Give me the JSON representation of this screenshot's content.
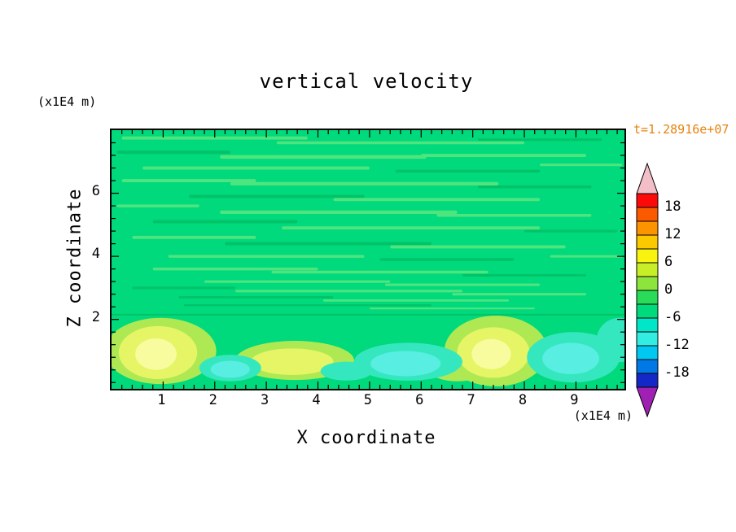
{
  "title": "vertical velocity",
  "timestamp": "t=1.28916e+07",
  "timestamp_color": "#E8820F",
  "axes": {
    "x": {
      "label": "X coordinate",
      "unit": "(x1E4 m)",
      "ticks": [
        1,
        2,
        3,
        4,
        5,
        6,
        7,
        8,
        9
      ],
      "min": 0,
      "max": 9.94
    },
    "y": {
      "label": "Z coordinate",
      "unit": "(x1E4 m)",
      "ticks": [
        2,
        4,
        6
      ],
      "min": -0.2,
      "max": 8.0
    }
  },
  "colorbar": {
    "labels": [
      "18",
      "12",
      "6",
      "0",
      "-6",
      "-12",
      "-18"
    ],
    "segment_colors": [
      "#FC0A0A",
      "#FC5A00",
      "#FC9400",
      "#FCC800",
      "#F8F410",
      "#C8EE28",
      "#8CE43C",
      "#28DC5A",
      "#00D97C",
      "#00E6C8",
      "#32EEE2",
      "#00C8F0",
      "#0078E6",
      "#1428C8"
    ],
    "arrow_top_color": "#F2BFC8",
    "arrow_bottom_color": "#A020B4",
    "border_color": "#000000"
  },
  "field": {
    "base_color": "#00D97C",
    "streak_light": "#4EE57F",
    "streak_dark": "#00C368",
    "value_fill": {
      "3": "#AEE954",
      "6": "#E6F566",
      "9": "#F8FC9E",
      "-3": "#35E7BE",
      "-6": "#58EEE2"
    }
  },
  "chart_data": {
    "type": "heatmap",
    "title": "vertical velocity",
    "xlabel": "X coordinate (x1E4 m)",
    "ylabel": "Z coordinate (x1E4 m)",
    "xlim": [
      0,
      9.94
    ],
    "ylim": [
      -0.2,
      8.0
    ],
    "time_annotation": "t=1.28916e+07",
    "colorbar_levels": [
      -21,
      -18,
      -15,
      -12,
      -9,
      -6,
      -3,
      0,
      3,
      6,
      9,
      12,
      15,
      18,
      21
    ],
    "colorbar_tick_labels": [
      18,
      12,
      6,
      0,
      -6,
      -12,
      -18
    ],
    "background_value_band": [
      0,
      3
    ],
    "streak_format": [
      "x_center",
      "z_center",
      "half_length_x",
      "thickness_z",
      "shade"
    ],
    "streaks": [
      [
        2.0,
        7.75,
        1.8,
        0.1,
        "L"
      ],
      [
        5.6,
        7.6,
        2.4,
        0.09,
        "L"
      ],
      [
        8.3,
        7.7,
        1.2,
        0.08,
        "D"
      ],
      [
        1.2,
        7.3,
        1.1,
        0.1,
        "D"
      ],
      [
        4.1,
        7.15,
        2.0,
        0.12,
        "L"
      ],
      [
        7.6,
        7.2,
        1.6,
        0.1,
        "L"
      ],
      [
        2.8,
        6.8,
        2.2,
        0.1,
        "L"
      ],
      [
        6.9,
        6.7,
        1.4,
        0.09,
        "D"
      ],
      [
        9.1,
        6.9,
        0.8,
        0.08,
        "L"
      ],
      [
        1.5,
        6.4,
        1.3,
        0.1,
        "L"
      ],
      [
        4.9,
        6.3,
        2.6,
        0.11,
        "L"
      ],
      [
        8.2,
        6.2,
        1.1,
        0.09,
        "D"
      ],
      [
        3.2,
        5.9,
        1.7,
        0.1,
        "D"
      ],
      [
        6.3,
        5.8,
        2.0,
        0.1,
        "L"
      ],
      [
        0.9,
        5.6,
        0.8,
        0.09,
        "L"
      ],
      [
        4.4,
        5.4,
        2.3,
        0.11,
        "L"
      ],
      [
        7.8,
        5.3,
        1.5,
        0.09,
        "L"
      ],
      [
        2.2,
        5.1,
        1.4,
        0.1,
        "D"
      ],
      [
        5.8,
        4.9,
        2.5,
        0.1,
        "L"
      ],
      [
        8.9,
        4.8,
        0.9,
        0.08,
        "D"
      ],
      [
        1.6,
        4.6,
        1.2,
        0.1,
        "L"
      ],
      [
        4.2,
        4.4,
        2.0,
        0.1,
        "D"
      ],
      [
        7.1,
        4.3,
        1.7,
        0.1,
        "L"
      ],
      [
        3.0,
        4.0,
        1.9,
        0.09,
        "L"
      ],
      [
        6.5,
        3.9,
        1.3,
        0.09,
        "D"
      ],
      [
        9.2,
        4.0,
        0.7,
        0.08,
        "L"
      ],
      [
        2.4,
        3.6,
        1.6,
        0.09,
        "L"
      ],
      [
        5.2,
        3.5,
        2.1,
        0.09,
        "L"
      ],
      [
        8.0,
        3.4,
        1.2,
        0.08,
        "D"
      ],
      [
        3.6,
        3.2,
        1.8,
        0.08,
        "L"
      ],
      [
        6.8,
        3.1,
        1.5,
        0.08,
        "L"
      ],
      [
        1.4,
        3.0,
        1.0,
        0.08,
        "D"
      ],
      [
        4.6,
        2.9,
        2.2,
        0.08,
        "L"
      ],
      [
        7.9,
        2.8,
        1.3,
        0.08,
        "L"
      ],
      [
        2.8,
        2.7,
        1.5,
        0.07,
        "D"
      ],
      [
        5.9,
        2.6,
        1.8,
        0.07,
        "L"
      ],
      [
        3.8,
        2.45,
        2.4,
        0.06,
        "D"
      ],
      [
        6.6,
        2.35,
        1.6,
        0.06,
        "L"
      ],
      [
        5.0,
        2.15,
        5.0,
        0.05,
        "D"
      ]
    ],
    "blob_format": [
      "x_center",
      "z_center",
      "radius_x",
      "radius_z",
      "contour_value"
    ],
    "blobs": [
      [
        0.95,
        1.0,
        1.08,
        1.05,
        3
      ],
      [
        0.9,
        0.95,
        0.76,
        0.84,
        6
      ],
      [
        0.86,
        0.9,
        0.4,
        0.5,
        9
      ],
      [
        3.55,
        0.7,
        1.15,
        0.62,
        3
      ],
      [
        3.5,
        0.66,
        0.8,
        0.42,
        6
      ],
      [
        6.7,
        0.36,
        0.52,
        0.32,
        3
      ],
      [
        7.45,
        1.0,
        1.0,
        1.12,
        3
      ],
      [
        7.4,
        0.95,
        0.7,
        0.8,
        6
      ],
      [
        7.36,
        0.9,
        0.38,
        0.48,
        9
      ],
      [
        2.3,
        0.46,
        0.6,
        0.42,
        -3
      ],
      [
        2.3,
        0.42,
        0.38,
        0.27,
        -6
      ],
      [
        4.55,
        0.36,
        0.5,
        0.3,
        -3
      ],
      [
        5.75,
        0.66,
        1.05,
        0.6,
        -3
      ],
      [
        5.7,
        0.6,
        0.68,
        0.4,
        -6
      ],
      [
        8.95,
        0.8,
        0.9,
        0.8,
        -3
      ],
      [
        8.9,
        0.76,
        0.55,
        0.5,
        -6
      ],
      [
        9.85,
        1.35,
        0.45,
        0.7,
        -3
      ]
    ]
  }
}
